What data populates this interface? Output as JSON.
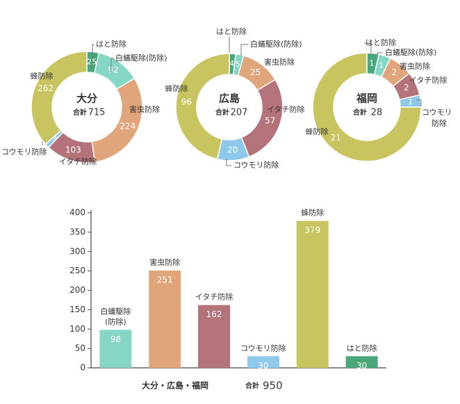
{
  "colors": {
    "hato": "#4aa77a",
    "shiroari": "#86d6c6",
    "gaichu": "#e1a57c",
    "itachi": "#b4737b",
    "koumori": "#8ec8ea",
    "hachi": "#c8c561",
    "label": "#333333",
    "leader": "#777777",
    "axis": "#444444",
    "grid": "#d9d9d9"
  },
  "chart_data": [
    {
      "type": "pie",
      "style": "donut",
      "title": "大分",
      "total_label": "合計",
      "total": 715,
      "slices": [
        {
          "label": "はと防除",
          "value": 25,
          "color_key": "hato"
        },
        {
          "label": "白蟻駆除(防除)",
          "value": 92,
          "color_key": "shiroari"
        },
        {
          "label": "害虫防除",
          "value": 224,
          "color_key": "gaichu"
        },
        {
          "label": "イタチ防除",
          "value": 103,
          "color_key": "itachi"
        },
        {
          "label": "コウモリ防除",
          "value": 9,
          "color_key": "koumori"
        },
        {
          "label": "蜂防除",
          "value": 262,
          "color_key": "hachi"
        }
      ]
    },
    {
      "type": "pie",
      "style": "donut",
      "title": "広島",
      "total_label": "合計",
      "total": 207,
      "slices": [
        {
          "label": "はと防除",
          "value": 4,
          "color_key": "hato"
        },
        {
          "label": "白蟻駆除(防除)",
          "value": 5,
          "color_key": "shiroari"
        },
        {
          "label": "害虫防除",
          "value": 25,
          "color_key": "gaichu"
        },
        {
          "label": "イタチ防除",
          "value": 57,
          "color_key": "itachi"
        },
        {
          "label": "コウモリ防除",
          "value": 20,
          "color_key": "koumori"
        },
        {
          "label": "蜂防除",
          "value": 96,
          "color_key": "hachi"
        }
      ]
    },
    {
      "type": "pie",
      "style": "donut",
      "title": "福岡",
      "total_label": "合計",
      "total": 28,
      "slices": [
        {
          "label": "はと防除",
          "value": 1,
          "color_key": "hato"
        },
        {
          "label": "白蟻駆除(防除)",
          "value": 1,
          "color_key": "shiroari"
        },
        {
          "label": "害虫防除",
          "value": 2,
          "color_key": "gaichu"
        },
        {
          "label": "イタチ防除",
          "value": 2,
          "color_key": "itachi"
        },
        {
          "label": "コウモリ防除",
          "value": 1,
          "color_key": "koumori"
        },
        {
          "label": "蜂防除",
          "value": 21,
          "color_key": "hachi"
        }
      ]
    },
    {
      "type": "bar",
      "title": "大分・広島・福岡",
      "total_label": "合計",
      "total": 950,
      "ylim": [
        0,
        400
      ],
      "yticks": [
        0,
        50,
        100,
        150,
        200,
        250,
        300,
        350,
        400
      ],
      "grid": false,
      "categories": [
        "白蟻駆除(防除)",
        "害虫防除",
        "イタチ防除",
        "コウモリ防除",
        "蜂防除",
        "はと防除"
      ],
      "values": [
        98,
        251,
        162,
        30,
        379,
        30
      ],
      "color_keys": [
        "shiroari",
        "gaichu",
        "itachi",
        "koumori",
        "hachi",
        "hato"
      ]
    }
  ]
}
